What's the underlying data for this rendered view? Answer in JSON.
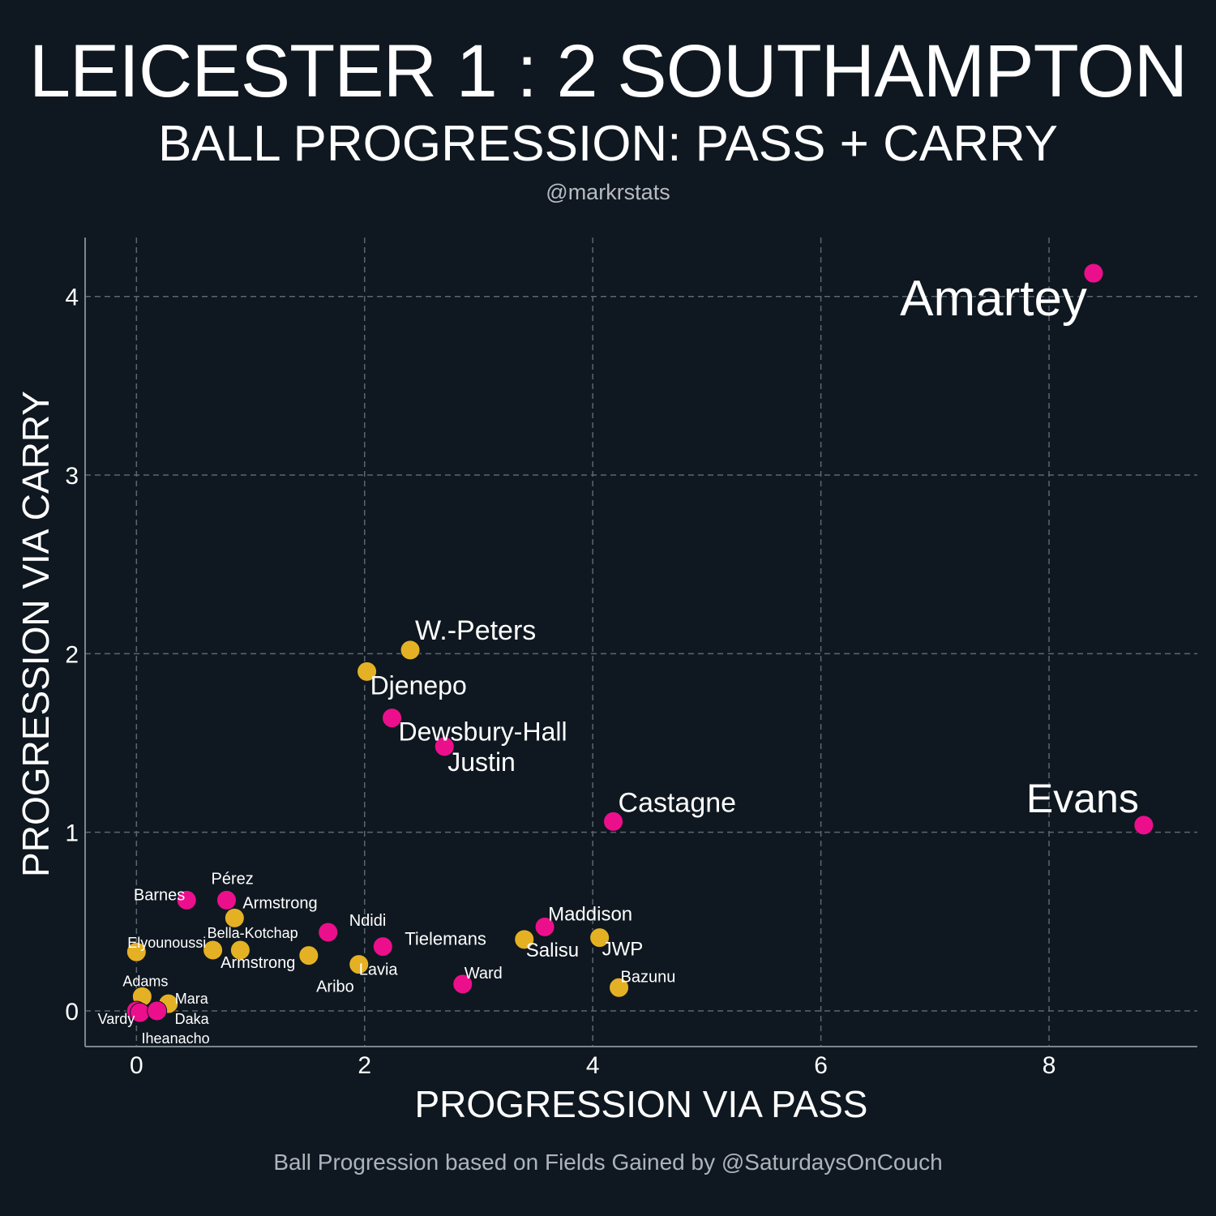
{
  "header": {
    "title": "LEICESTER 1 : 2 SOUTHAMPTON",
    "subtitle": "BALL PROGRESSION: PASS + CARRY",
    "handle": "@markrstats"
  },
  "footer": "Ball Progression based on Fields Gained by @SaturdaysOnCouch",
  "colors": {
    "background": "#0f1820",
    "leicester": "#ec0f8c",
    "southampton": "#e5b124",
    "grid": "#5c6670",
    "axis": "#7b868f"
  },
  "chart_data": {
    "type": "scatter",
    "title": "BALL PROGRESSION: PASS + CARRY",
    "xlabel": "PROGRESSION VIA PASS",
    "ylabel": "PROGRESSION VIA CARRY",
    "xlim": [
      -0.45,
      9.3
    ],
    "ylim": [
      -0.2,
      4.33
    ],
    "xticks": [
      0,
      2,
      4,
      6,
      8
    ],
    "yticks": [
      0,
      1,
      2,
      3,
      4
    ],
    "grid": true,
    "series": [
      {
        "name": "Leicester",
        "color": "#ec0f8c",
        "points": [
          {
            "label": "Amartey",
            "x": 8.39,
            "y": 4.13
          },
          {
            "label": "Evans",
            "x": 8.83,
            "y": 1.04
          },
          {
            "label": "Castagne",
            "x": 4.18,
            "y": 1.06
          },
          {
            "label": "Dewsbury-Hall",
            "x": 2.24,
            "y": 1.64
          },
          {
            "label": "Justin",
            "x": 2.7,
            "y": 1.48
          },
          {
            "label": "Maddison",
            "x": 3.58,
            "y": 0.47
          },
          {
            "label": "Tielemans",
            "x": 2.16,
            "y": 0.36
          },
          {
            "label": "Ward",
            "x": 2.86,
            "y": 0.15
          },
          {
            "label": "Ndidi",
            "x": 1.68,
            "y": 0.44
          },
          {
            "label": "Pérez",
            "x": 0.79,
            "y": 0.62
          },
          {
            "label": "Barnes",
            "x": 0.44,
            "y": 0.62
          },
          {
            "label": "Vardy",
            "x": 0.0,
            "y": 0.0
          },
          {
            "label": "Iheanacho",
            "x": 0.03,
            "y": -0.01
          },
          {
            "label": "Daka",
            "x": 0.18,
            "y": 0.0
          }
        ]
      },
      {
        "name": "Southampton",
        "color": "#e5b124",
        "points": [
          {
            "label": "W.-Peters",
            "x": 2.4,
            "y": 2.02
          },
          {
            "label": "Djenepo",
            "x": 2.02,
            "y": 1.9
          },
          {
            "label": "JWP",
            "x": 4.06,
            "y": 0.41
          },
          {
            "label": "Salisu",
            "x": 3.4,
            "y": 0.4
          },
          {
            "label": "Bazunu",
            "x": 4.23,
            "y": 0.13
          },
          {
            "label": "Lavia",
            "x": 1.95,
            "y": 0.26
          },
          {
            "label": "Aribo",
            "x": 1.51,
            "y": 0.31
          },
          {
            "label": "Armstrong",
            "x": 0.86,
            "y": 0.52
          },
          {
            "label": "Armstrong",
            "x": 0.91,
            "y": 0.34
          },
          {
            "label": "Bella-Kotchap",
            "x": 0.67,
            "y": 0.34
          },
          {
            "label": "Elyounoussi",
            "x": 0.0,
            "y": 0.33
          },
          {
            "label": "Adams",
            "x": 0.05,
            "y": 0.08
          },
          {
            "label": "Mara",
            "x": 0.28,
            "y": 0.04
          }
        ]
      }
    ]
  }
}
